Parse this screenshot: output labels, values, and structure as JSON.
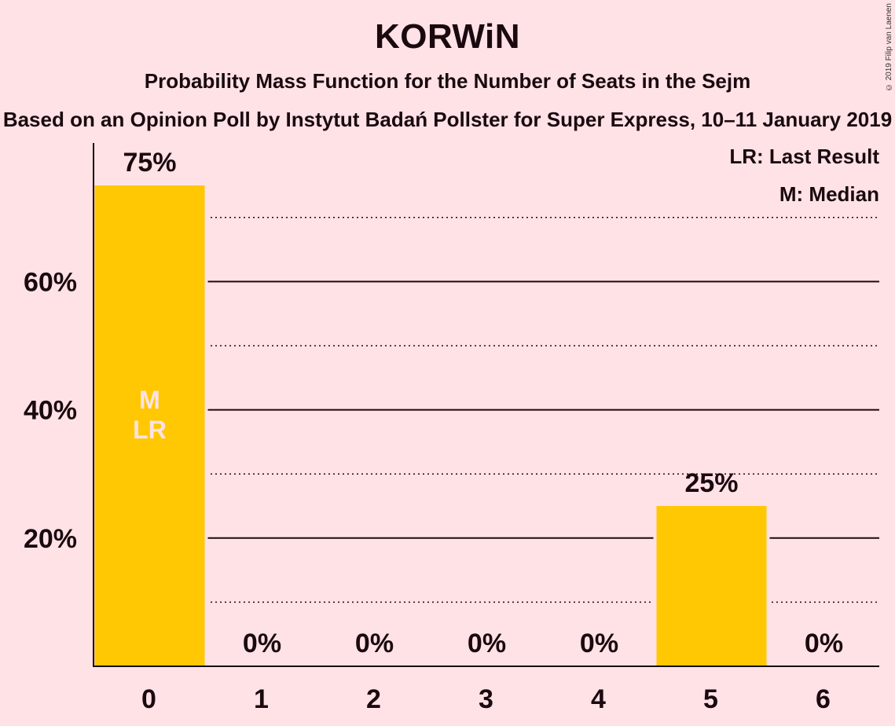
{
  "chart_data": {
    "type": "bar",
    "title": "KORWiN",
    "subtitle": "Probability Mass Function for the Number of Seats in the Sejm",
    "subtitle2": "Based on an Opinion Poll by Instytut Badań Pollster for Super Express, 10–11 January 2019",
    "categories": [
      "0",
      "1",
      "2",
      "3",
      "4",
      "5",
      "6"
    ],
    "values": [
      75,
      0,
      0,
      0,
      0,
      25,
      0
    ],
    "value_labels": [
      "75%",
      "0%",
      "0%",
      "0%",
      "0%",
      "25%",
      "0%"
    ],
    "ylim": [
      0,
      80
    ],
    "y_ticks": [
      20,
      40,
      60
    ],
    "y_tick_labels": [
      "20%",
      "40%",
      "60%"
    ],
    "minor_gridlines": [
      10,
      30,
      50,
      70
    ],
    "bar_markers": [
      {
        "index": 0,
        "lines": [
          "M",
          "LR"
        ]
      }
    ],
    "legend": [
      "LR: Last Result",
      "M: Median"
    ],
    "legend_position": "top-right",
    "bar_color": "#FFC803",
    "background_color": "#FFE2E6",
    "marker_text_color": "#FFE2E6"
  },
  "copyright": "© 2019 Filip van Laenen"
}
